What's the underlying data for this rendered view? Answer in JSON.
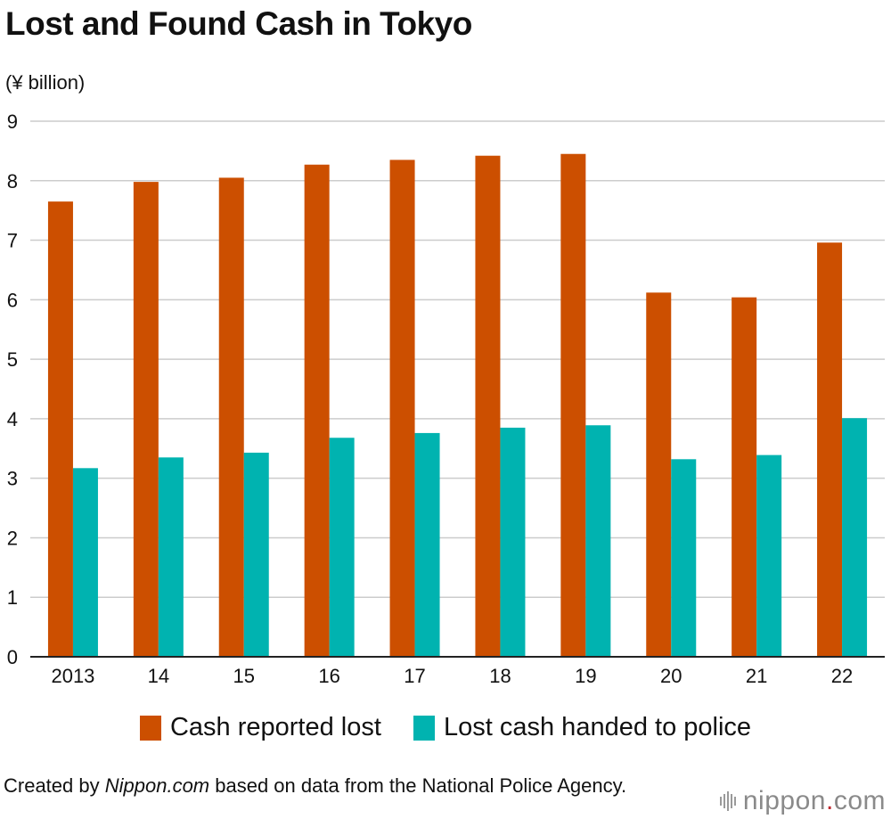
{
  "title": "Lost and Found Cash in Tokyo",
  "unit_label": "(¥ billion)",
  "legend": {
    "lost": "Cash reported lost",
    "found": "Lost cash handed to police"
  },
  "footer": {
    "prefix": "Created by ",
    "source_italic": "Nippon.com",
    "suffix": " based on data from the National Police Agency."
  },
  "logo": {
    "name": "nippon",
    "dot": ".",
    "tld": "com"
  },
  "colors": {
    "lost": "#cc4f00",
    "found": "#00b3b0",
    "grid": "#cccccc",
    "axis": "#222222"
  },
  "chart_data": {
    "type": "bar",
    "categories": [
      "2013",
      "14",
      "15",
      "16",
      "17",
      "18",
      "19",
      "20",
      "21",
      "22"
    ],
    "series": [
      {
        "name": "Cash reported lost",
        "values": [
          7.65,
          7.98,
          8.05,
          8.27,
          8.35,
          8.42,
          8.45,
          6.12,
          6.04,
          6.96
        ]
      },
      {
        "name": "Lost cash handed to police",
        "values": [
          3.17,
          3.35,
          3.43,
          3.68,
          3.76,
          3.85,
          3.89,
          3.32,
          3.39,
          4.01
        ]
      }
    ],
    "ylabel": "(¥ billion)",
    "ylim": [
      0,
      9
    ],
    "yticks": [
      0,
      1,
      2,
      3,
      4,
      5,
      6,
      7,
      8,
      9
    ],
    "grid": true,
    "legend_position": "bottom"
  }
}
